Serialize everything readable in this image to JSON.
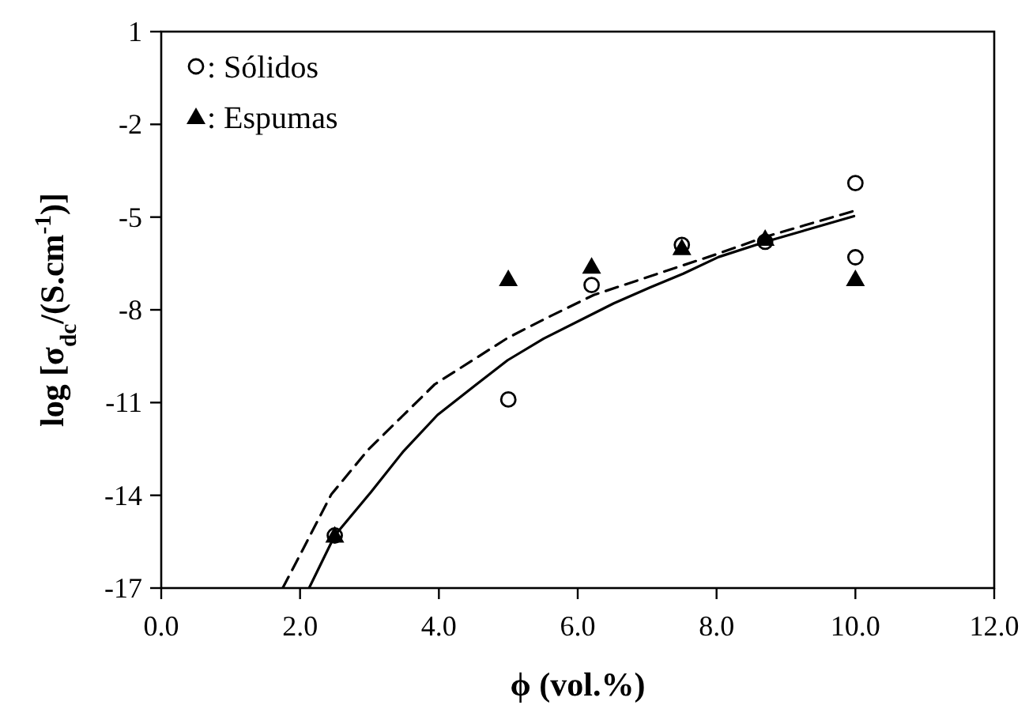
{
  "chart_data": {
    "type": "scatter",
    "xlabel": "ϕ  (vol.%)",
    "ylabel": "log [σ$_{dc}$/(S.cm$^{-1}$)]",
    "xlim": [
      0,
      12
    ],
    "ylim": [
      -17,
      1
    ],
    "xticks": [
      {
        "value": 0,
        "label": "0.0"
      },
      {
        "value": 2,
        "label": "2.0"
      },
      {
        "value": 4,
        "label": "4.0"
      },
      {
        "value": 6,
        "label": "6.0"
      },
      {
        "value": 8,
        "label": "8.0"
      },
      {
        "value": 10,
        "label": "10.0"
      },
      {
        "value": 12,
        "label": "12.0"
      }
    ],
    "yticks": [
      1,
      -2,
      -5,
      -8,
      -11,
      -14,
      -17
    ],
    "grid": false,
    "legend": "top left",
    "series": [
      {
        "name": ": Sólidos",
        "marker": "circle",
        "color": "#000000",
        "x": [
          2.5,
          5.0,
          6.2,
          7.5,
          8.7,
          10.0,
          10.0
        ],
        "values": [
          -15.3,
          -10.9,
          -7.2,
          -5.9,
          -5.8,
          -3.9,
          -6.3
        ]
      },
      {
        "name": ": Espumas",
        "marker": "triangle",
        "color": "#000000",
        "x": [
          2.5,
          5.0,
          6.2,
          7.5,
          8.7,
          10.0
        ],
        "values": [
          -15.3,
          -7.0,
          -6.6,
          -6.0,
          -5.7,
          -7.0
        ]
      },
      {
        "type": "line",
        "marker": "none",
        "line_style": "solid",
        "color": "#000000",
        "x": [
          2.13,
          2.5,
          3.02,
          3.48,
          3.98,
          4.52,
          4.99,
          5.51,
          6.52,
          7.04,
          7.52,
          8.03,
          8.73,
          9.98
        ],
        "values": [
          -17,
          -15.3,
          -13.9,
          -12.6,
          -11.4,
          -10.45,
          -9.63,
          -8.93,
          -7.79,
          -7.28,
          -6.83,
          -6.29,
          -5.78,
          -4.97
        ]
      },
      {
        "type": "line",
        "marker": "none",
        "line_style": "dashed",
        "color": "#000000",
        "x": [
          1.75,
          1.99,
          2.45,
          2.98,
          3.94,
          4.99,
          5.51,
          6.23,
          8.0,
          8.73,
          9.98
        ],
        "values": [
          -17,
          -15.97,
          -13.97,
          -12.53,
          -10.41,
          -8.91,
          -8.31,
          -7.52,
          -6.2,
          -5.62,
          -4.8
        ]
      }
    ]
  }
}
